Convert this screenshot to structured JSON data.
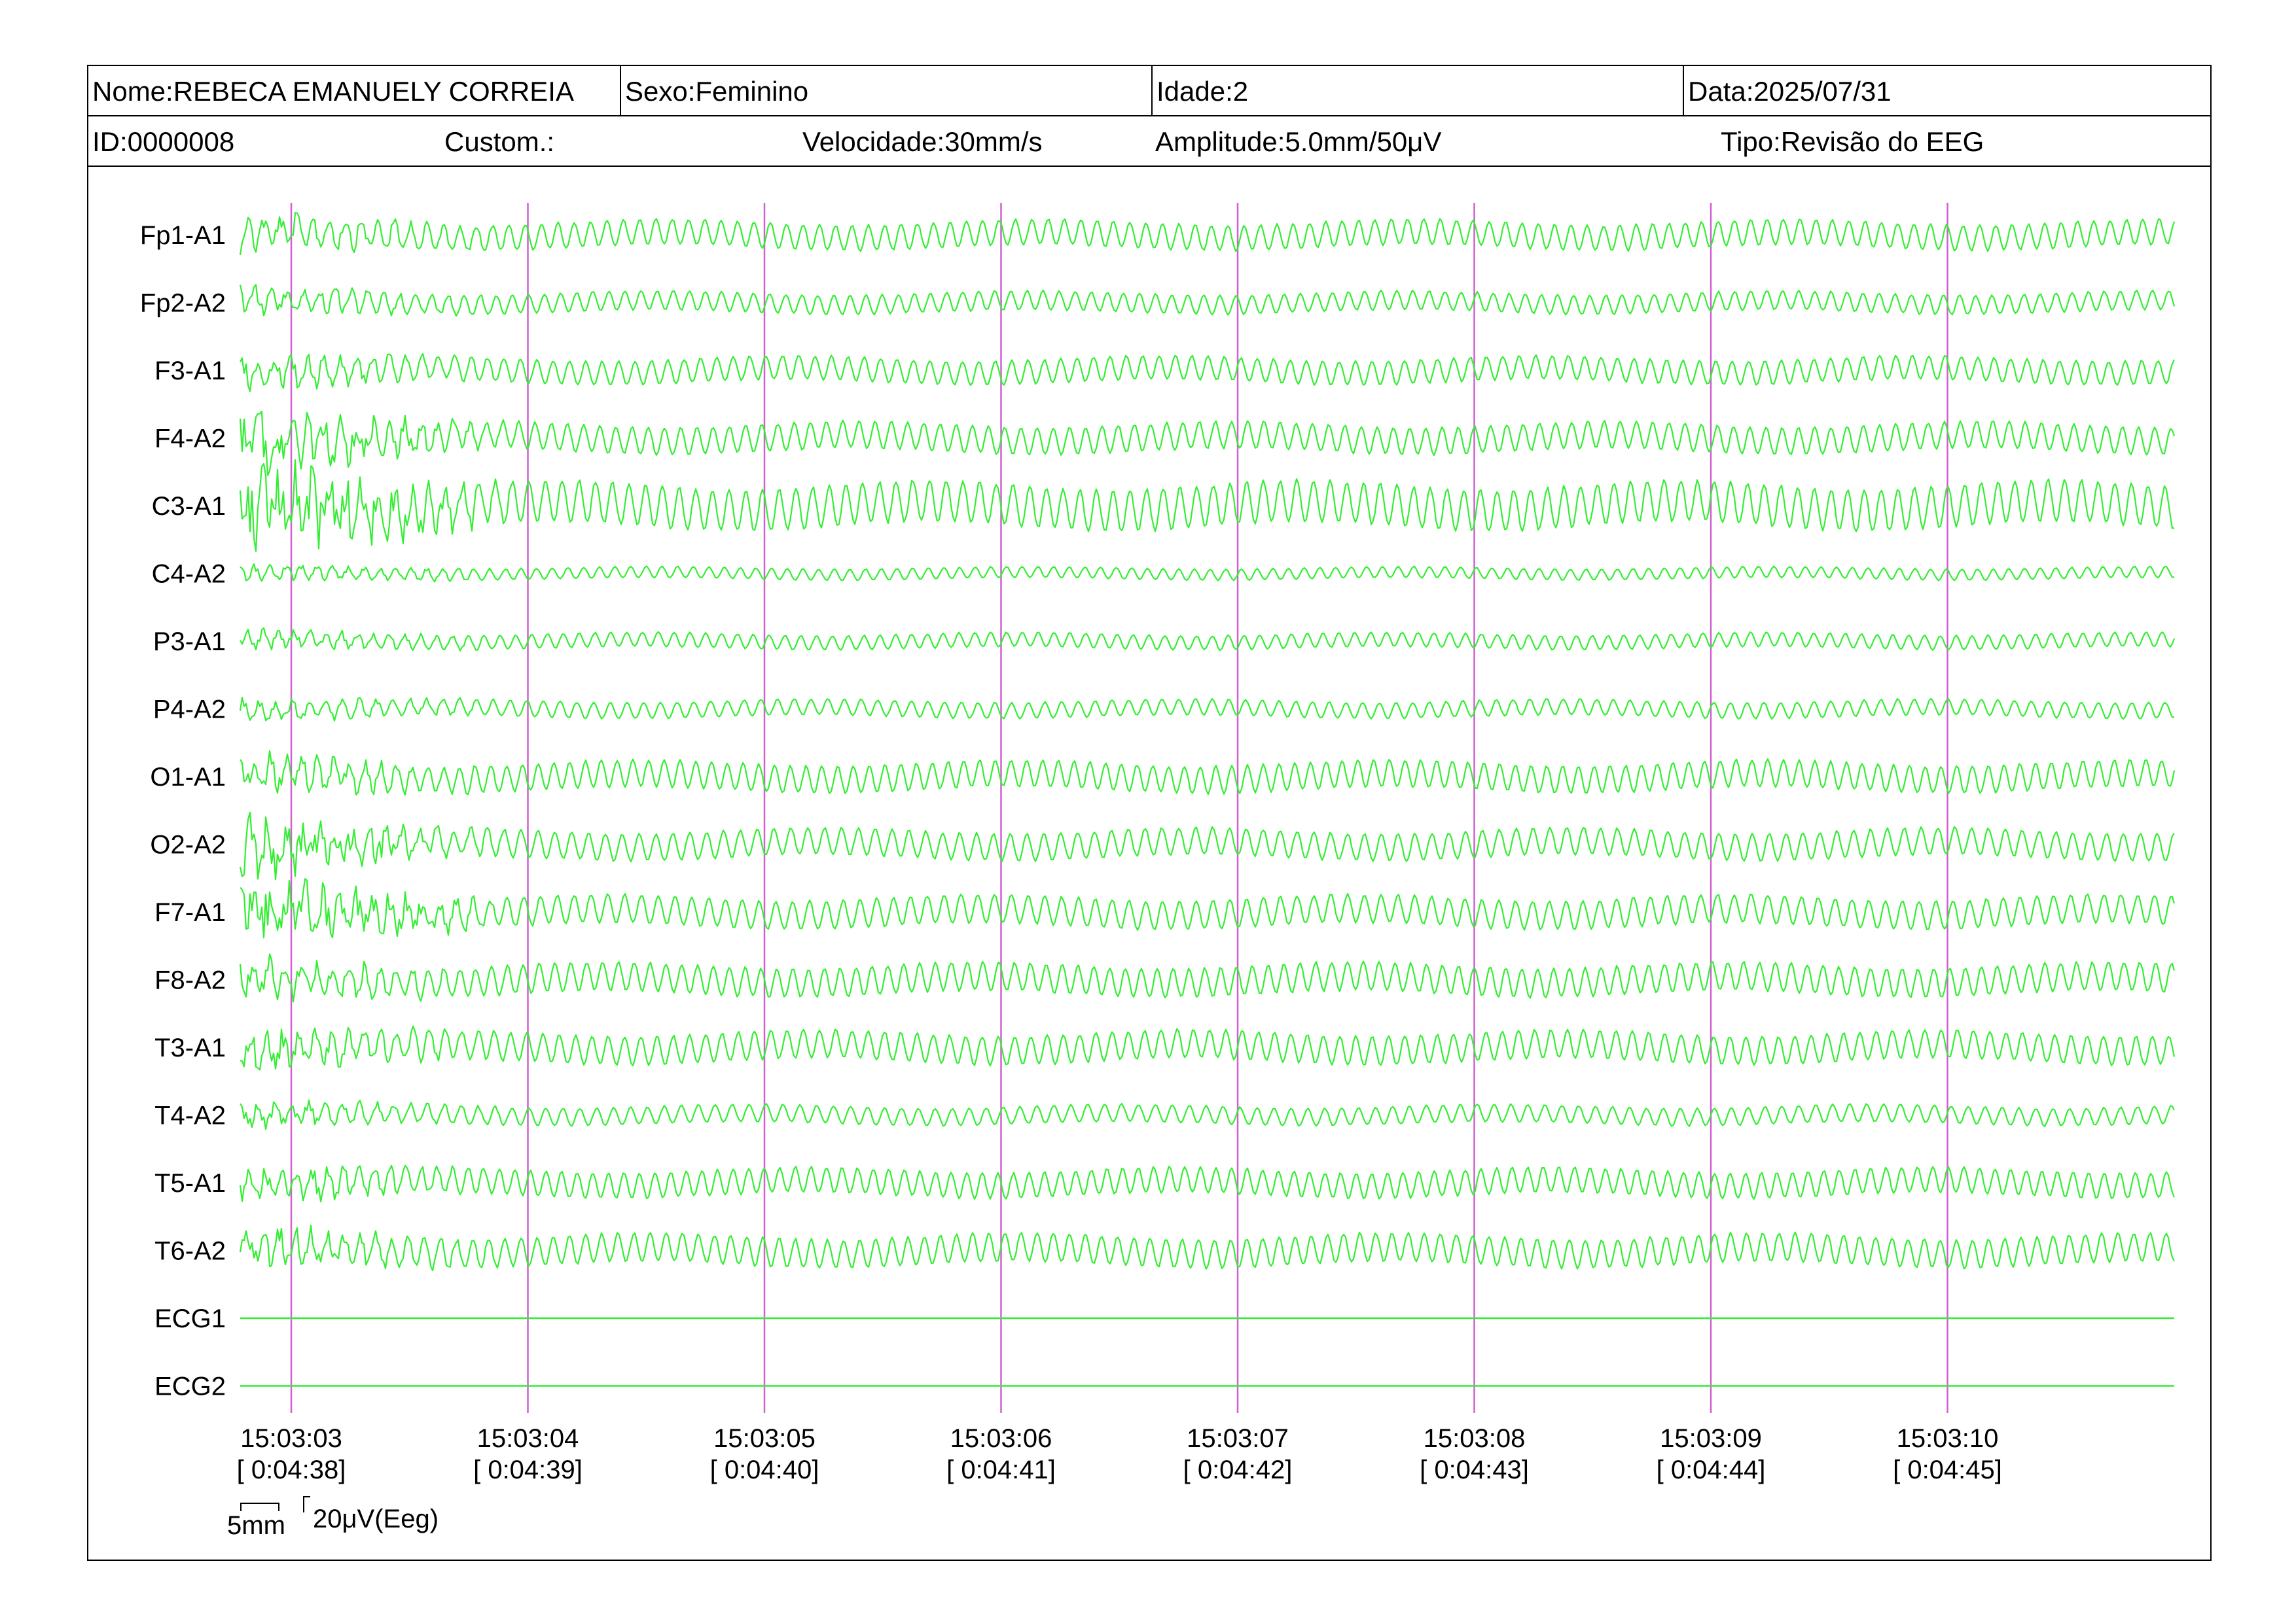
{
  "header": {
    "name_label": "Nome:REBECA EMANUELY CORREIA",
    "sex_label": "Sexo:Feminino",
    "age_label": "Idade:2",
    "date_label": "Data:2025/07/31",
    "id_label": "ID:0000008",
    "custom_label": "Custom.:",
    "speed_label": "Velocidade:30mm/s",
    "amplitude_label": "Amplitude:5.0mm/50μV",
    "type_label": "Tipo:Revisão do EEG"
  },
  "colors": {
    "trace": "#33ee33",
    "marker": "#d060d0",
    "frame": "#000000"
  },
  "channels": [
    {
      "label": "Fp1-A1",
      "amp": 0.8
    },
    {
      "label": "Fp2-A2",
      "amp": 0.6
    },
    {
      "label": "F3-A1",
      "amp": 0.75
    },
    {
      "label": "F4-A2",
      "amp": 0.85
    },
    {
      "label": "C3-A1",
      "amp": 1.3
    },
    {
      "label": "C4-A2",
      "amp": 0.35
    },
    {
      "label": "P3-A1",
      "amp": 0.45
    },
    {
      "label": "P4-A2",
      "amp": 0.5
    },
    {
      "label": "O1-A1",
      "amp": 0.85
    },
    {
      "label": "O2-A2",
      "amp": 0.85
    },
    {
      "label": "F7-A1",
      "amp": 0.9
    },
    {
      "label": "F8-A2",
      "amp": 0.9
    },
    {
      "label": "T3-A1",
      "amp": 0.9
    },
    {
      "label": "T4-A2",
      "amp": 0.55
    },
    {
      "label": "T5-A1",
      "amp": 0.8
    },
    {
      "label": "T6-A2",
      "amp": 0.9
    },
    {
      "label": "ECG1",
      "amp": 0
    },
    {
      "label": "ECG2",
      "amp": 0
    }
  ],
  "time_marks": [
    {
      "clock": "15:03:03",
      "elapsed": "[ 0:04:38]"
    },
    {
      "clock": "15:03:04",
      "elapsed": "[ 0:04:39]"
    },
    {
      "clock": "15:03:05",
      "elapsed": "[ 0:04:40]"
    },
    {
      "clock": "15:03:06",
      "elapsed": "[ 0:04:41]"
    },
    {
      "clock": "15:03:07",
      "elapsed": "[ 0:04:42]"
    },
    {
      "clock": "15:03:08",
      "elapsed": "[ 0:04:43]"
    },
    {
      "clock": "15:03:09",
      "elapsed": "[ 0:04:44]"
    },
    {
      "clock": "15:03:10",
      "elapsed": "[ 0:04:45]"
    }
  ],
  "scale": {
    "time_label": "5mm",
    "amp_label": "20μV(Eeg)"
  }
}
